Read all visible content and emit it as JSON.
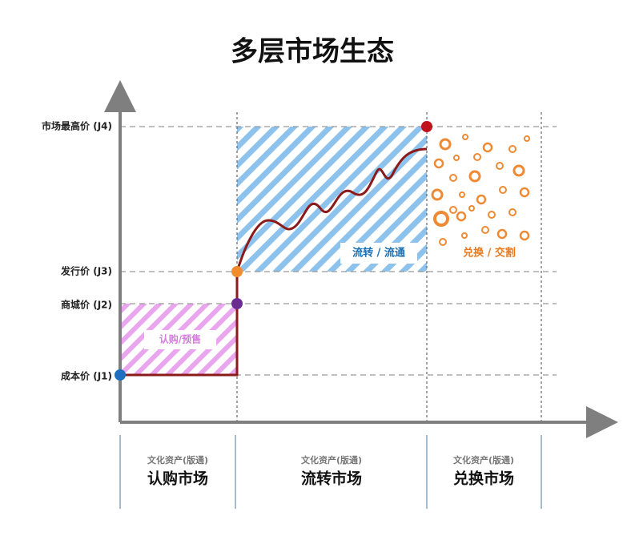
{
  "title": "多层市场生态",
  "levels": [
    "市场最高价 (J4)",
    "发行价 (J3)",
    "商城价 (J2)",
    "成本价 (J1)"
  ],
  "regions": [
    "认购/预售",
    "流转 / 流通",
    "兑换 / 交割"
  ],
  "markets": [
    {
      "caption": "文化资产(版通)",
      "name": "认购市场"
    },
    {
      "caption": "文化资产(版通)",
      "name": "流转市场"
    },
    {
      "caption": "文化资产(版通)",
      "name": "兑换市场"
    }
  ]
}
